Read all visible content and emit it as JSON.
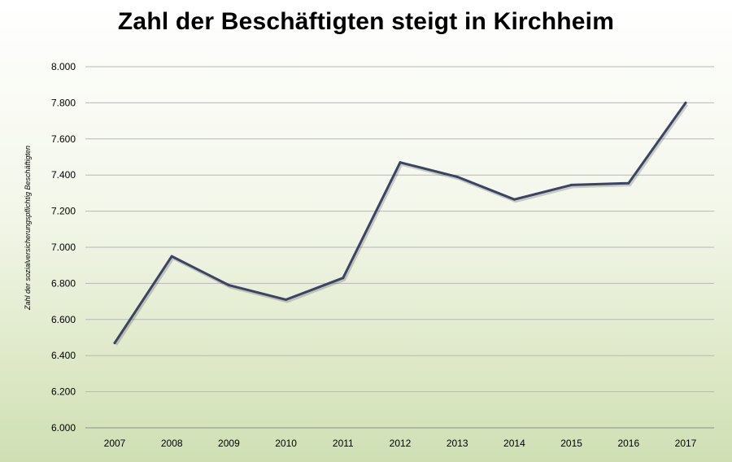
{
  "chart_data": {
    "type": "line",
    "title": "Zahl der Beschäftigten steigt in Kirchheim",
    "xlabel": "",
    "ylabel": "Zahl der sozialversicherungspflichtig  Beschäftigten",
    "categories": [
      "2007",
      "2008",
      "2009",
      "2010",
      "2011",
      "2012",
      "2013",
      "2014",
      "2015",
      "2016",
      "2017"
    ],
    "series": [
      {
        "values": [
          6470,
          6950,
          6790,
          6710,
          6830,
          7470,
          7390,
          7265,
          7345,
          7355,
          7800
        ]
      }
    ],
    "ylim": [
      6000,
      8000
    ],
    "yticks": [
      6000,
      6200,
      6400,
      6600,
      6800,
      7000,
      7200,
      7400,
      7600,
      7800,
      8000
    ],
    "ytick_labels": [
      "6.000",
      "6.200",
      "6.400",
      "6.600",
      "6.800",
      "7.000",
      "7.200",
      "7.400",
      "7.600",
      "7.800",
      "8.000"
    ],
    "grid": true,
    "line_color": "#3b4366"
  }
}
